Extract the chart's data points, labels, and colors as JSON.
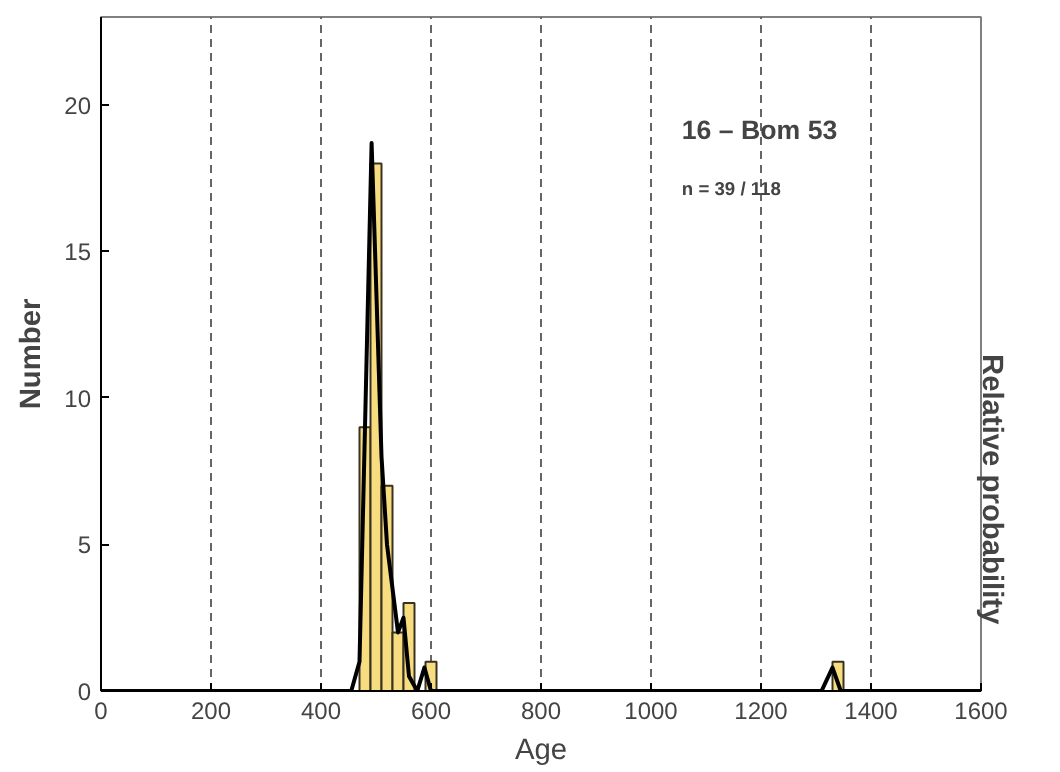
{
  "chart_data": {
    "type": "histogram",
    "xlabel": "Age",
    "ylabel": "Number",
    "y2label": "Relative probability",
    "annotations": [
      "16 – Bom 53",
      "n = 39 / 118"
    ],
    "bins": [
      470,
      490,
      510,
      530,
      550,
      570,
      590,
      610,
      630,
      650,
      670,
      690,
      710,
      730,
      750,
      770,
      790,
      810,
      830,
      850,
      870,
      890,
      910,
      930,
      950,
      970,
      990,
      1010,
      1030,
      1050,
      1070,
      1090,
      1110,
      1130,
      1150,
      1170,
      1190,
      1210,
      1230,
      1250,
      1270,
      1290,
      1310,
      1330,
      1350
    ],
    "values": [
      9,
      18,
      7,
      2,
      3,
      0,
      1,
      0,
      0,
      0,
      0,
      0,
      0,
      0,
      0,
      0,
      0,
      0,
      0,
      0,
      0,
      0,
      0,
      0,
      0,
      0,
      0,
      0,
      0,
      0,
      0,
      0,
      0,
      0,
      0,
      0,
      0,
      0,
      0,
      0,
      0,
      0,
      0,
      1
    ],
    "color": "#f7dc80",
    "series": [
      {
        "type": "line",
        "color": "#000000",
        "x": [
          0,
          455,
          470,
          480,
          492,
          500,
          510,
          520,
          530,
          540,
          550,
          560,
          575,
          588,
          600,
          1310,
          1330,
          1345,
          1600
        ],
        "values": [
          0,
          0,
          1,
          9,
          18.7,
          14,
          8,
          5,
          3.5,
          2,
          2.5,
          0.5,
          0,
          0.8,
          0,
          0,
          0.8,
          0,
          0
        ]
      }
    ],
    "xlim": [
      0,
      1600
    ],
    "xticks": [
      0,
      200,
      400,
      600,
      800,
      1000,
      1200,
      1400,
      1600
    ],
    "ylim": [
      0,
      23
    ],
    "yticks": [
      0,
      5,
      10,
      15,
      20
    ],
    "grid": "x"
  }
}
